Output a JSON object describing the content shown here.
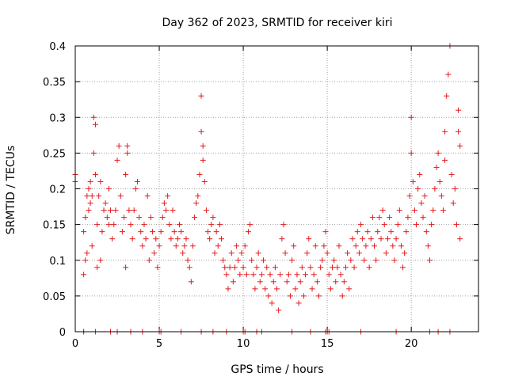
{
  "chart_data": {
    "type": "scatter",
    "title": "Day 362 of 2023, SRMTID for receiver kiri",
    "xlabel": "GPS time / hours",
    "ylabel": "SRMTID / TECUs",
    "xlim": [
      0,
      24
    ],
    "ylim": [
      0,
      0.4
    ],
    "grid": true,
    "x_ticks": [
      0,
      5,
      10,
      15,
      20
    ],
    "x_tick_labels": [
      "0",
      "5",
      "10",
      "15",
      "20"
    ],
    "y_ticks": [
      0,
      0.05,
      0.1,
      0.15,
      0.2,
      0.25,
      0.3,
      0.35,
      0.4
    ],
    "y_tick_labels": [
      "0",
      "0.05",
      "0.1",
      "0.15",
      "0.2",
      "0.25",
      "0.3",
      "0.35",
      "0.4"
    ],
    "marker": "+",
    "series": [
      {
        "name": "SRMTID",
        "color": "#e41a1c",
        "points": [
          [
            0.0,
            0.21
          ],
          [
            0.0,
            0.22
          ],
          [
            0.5,
            0.14
          ],
          [
            0.5,
            0.08
          ],
          [
            0.6,
            0.1
          ],
          [
            0.6,
            0.16
          ],
          [
            0.7,
            0.11
          ],
          [
            0.7,
            0.19
          ],
          [
            0.8,
            0.2
          ],
          [
            0.8,
            0.17
          ],
          [
            0.9,
            0.18
          ],
          [
            0.9,
            0.21
          ],
          [
            1.0,
            0.19
          ],
          [
            1.0,
            0.12
          ],
          [
            1.1,
            0.25
          ],
          [
            1.1,
            0.3
          ],
          [
            1.2,
            0.29
          ],
          [
            1.2,
            0.22
          ],
          [
            1.3,
            0.09
          ],
          [
            1.3,
            0.15
          ],
          [
            1.4,
            0.19
          ],
          [
            1.5,
            0.21
          ],
          [
            1.5,
            0.1
          ],
          [
            1.6,
            0.14
          ],
          [
            1.7,
            0.17
          ],
          [
            1.8,
            0.18
          ],
          [
            1.9,
            0.16
          ],
          [
            2.0,
            0.15
          ],
          [
            2.0,
            0.2
          ],
          [
            2.1,
            0.17
          ],
          [
            2.2,
            0.13
          ],
          [
            2.3,
            0.15
          ],
          [
            2.4,
            0.17
          ],
          [
            2.5,
            0.24
          ],
          [
            2.6,
            0.26
          ],
          [
            2.7,
            0.19
          ],
          [
            2.8,
            0.14
          ],
          [
            2.9,
            0.16
          ],
          [
            3.0,
            0.22
          ],
          [
            3.0,
            0.09
          ],
          [
            3.1,
            0.25
          ],
          [
            3.1,
            0.26
          ],
          [
            3.2,
            0.17
          ],
          [
            3.3,
            0.15
          ],
          [
            3.4,
            0.13
          ],
          [
            3.5,
            0.17
          ],
          [
            3.6,
            0.2
          ],
          [
            3.7,
            0.21
          ],
          [
            3.8,
            0.16
          ],
          [
            3.9,
            0.14
          ],
          [
            4.0,
            0.12
          ],
          [
            4.1,
            0.15
          ],
          [
            4.2,
            0.13
          ],
          [
            4.3,
            0.19
          ],
          [
            4.4,
            0.1
          ],
          [
            4.5,
            0.16
          ],
          [
            4.6,
            0.14
          ],
          [
            4.7,
            0.11
          ],
          [
            4.8,
            0.13
          ],
          [
            4.9,
            0.09
          ],
          [
            5.0,
            0.12
          ],
          [
            5.1,
            0.14
          ],
          [
            5.2,
            0.16
          ],
          [
            5.3,
            0.18
          ],
          [
            5.4,
            0.17
          ],
          [
            5.5,
            0.19
          ],
          [
            5.6,
            0.15
          ],
          [
            5.7,
            0.13
          ],
          [
            5.8,
            0.17
          ],
          [
            5.9,
            0.14
          ],
          [
            6.0,
            0.12
          ],
          [
            6.1,
            0.13
          ],
          [
            6.2,
            0.15
          ],
          [
            6.3,
            0.14
          ],
          [
            6.4,
            0.11
          ],
          [
            6.5,
            0.12
          ],
          [
            6.6,
            0.13
          ],
          [
            6.7,
            0.1
          ],
          [
            6.8,
            0.09
          ],
          [
            6.9,
            0.07
          ],
          [
            7.0,
            0.12
          ],
          [
            7.1,
            0.16
          ],
          [
            7.2,
            0.18
          ],
          [
            7.3,
            0.19
          ],
          [
            7.4,
            0.22
          ],
          [
            7.5,
            0.28
          ],
          [
            7.5,
            0.33
          ],
          [
            7.6,
            0.26
          ],
          [
            7.6,
            0.24
          ],
          [
            7.7,
            0.21
          ],
          [
            7.8,
            0.17
          ],
          [
            7.9,
            0.14
          ],
          [
            8.0,
            0.13
          ],
          [
            8.1,
            0.15
          ],
          [
            8.2,
            0.16
          ],
          [
            8.3,
            0.11
          ],
          [
            8.4,
            0.14
          ],
          [
            8.5,
            0.12
          ],
          [
            8.6,
            0.15
          ],
          [
            8.7,
            0.13
          ],
          [
            8.8,
            0.1
          ],
          [
            8.9,
            0.09
          ],
          [
            9.0,
            0.08
          ],
          [
            9.1,
            0.06
          ],
          [
            9.2,
            0.09
          ],
          [
            9.3,
            0.11
          ],
          [
            9.4,
            0.07
          ],
          [
            9.5,
            0.09
          ],
          [
            9.6,
            0.12
          ],
          [
            9.7,
            0.1
          ],
          [
            9.8,
            0.08
          ],
          [
            9.9,
            0.11
          ],
          [
            10.0,
            0.09
          ],
          [
            10.1,
            0.12
          ],
          [
            10.2,
            0.08
          ],
          [
            10.3,
            0.14
          ],
          [
            10.4,
            0.15
          ],
          [
            10.5,
            0.1
          ],
          [
            10.6,
            0.08
          ],
          [
            10.7,
            0.06
          ],
          [
            10.8,
            0.09
          ],
          [
            10.9,
            0.11
          ],
          [
            11.0,
            0.07
          ],
          [
            11.1,
            0.08
          ],
          [
            11.2,
            0.1
          ],
          [
            11.3,
            0.06
          ],
          [
            11.4,
            0.09
          ],
          [
            11.5,
            0.05
          ],
          [
            11.6,
            0.08
          ],
          [
            11.7,
            0.04
          ],
          [
            11.8,
            0.07
          ],
          [
            11.9,
            0.09
          ],
          [
            12.0,
            0.06
          ],
          [
            12.1,
            0.03
          ],
          [
            12.2,
            0.08
          ],
          [
            12.3,
            0.13
          ],
          [
            12.4,
            0.15
          ],
          [
            12.5,
            0.11
          ],
          [
            12.6,
            0.07
          ],
          [
            12.7,
            0.08
          ],
          [
            12.8,
            0.05
          ],
          [
            12.9,
            0.1
          ],
          [
            13.0,
            0.12
          ],
          [
            13.1,
            0.06
          ],
          [
            13.2,
            0.08
          ],
          [
            13.3,
            0.04
          ],
          [
            13.4,
            0.07
          ],
          [
            13.5,
            0.09
          ],
          [
            13.6,
            0.05
          ],
          [
            13.7,
            0.08
          ],
          [
            13.8,
            0.11
          ],
          [
            13.9,
            0.13
          ],
          [
            14.0,
            0.09
          ],
          [
            14.1,
            0.06
          ],
          [
            14.2,
            0.08
          ],
          [
            14.3,
            0.12
          ],
          [
            14.4,
            0.07
          ],
          [
            14.5,
            0.05
          ],
          [
            14.6,
            0.09
          ],
          [
            14.7,
            0.1
          ],
          [
            14.8,
            0.12
          ],
          [
            14.9,
            0.14
          ],
          [
            15.0,
            0.11
          ],
          [
            15.1,
            0.08
          ],
          [
            15.2,
            0.06
          ],
          [
            15.3,
            0.09
          ],
          [
            15.4,
            0.1
          ],
          [
            15.5,
            0.07
          ],
          [
            15.6,
            0.09
          ],
          [
            15.7,
            0.12
          ],
          [
            15.8,
            0.08
          ],
          [
            15.9,
            0.05
          ],
          [
            16.0,
            0.07
          ],
          [
            16.1,
            0.09
          ],
          [
            16.2,
            0.11
          ],
          [
            16.3,
            0.06
          ],
          [
            16.4,
            0.1
          ],
          [
            16.5,
            0.13
          ],
          [
            16.6,
            0.09
          ],
          [
            16.7,
            0.12
          ],
          [
            16.8,
            0.14
          ],
          [
            16.9,
            0.11
          ],
          [
            17.0,
            0.15
          ],
          [
            17.1,
            0.13
          ],
          [
            17.2,
            0.1
          ],
          [
            17.3,
            0.12
          ],
          [
            17.4,
            0.14
          ],
          [
            17.5,
            0.09
          ],
          [
            17.6,
            0.13
          ],
          [
            17.7,
            0.16
          ],
          [
            17.8,
            0.12
          ],
          [
            17.9,
            0.1
          ],
          [
            18.0,
            0.14
          ],
          [
            18.1,
            0.16
          ],
          [
            18.2,
            0.13
          ],
          [
            18.3,
            0.17
          ],
          [
            18.4,
            0.15
          ],
          [
            18.5,
            0.11
          ],
          [
            18.6,
            0.13
          ],
          [
            18.7,
            0.16
          ],
          [
            18.8,
            0.14
          ],
          [
            18.9,
            0.12
          ],
          [
            19.0,
            0.1
          ],
          [
            19.1,
            0.13
          ],
          [
            19.2,
            0.15
          ],
          [
            19.3,
            0.17
          ],
          [
            19.4,
            0.12
          ],
          [
            19.5,
            0.09
          ],
          [
            19.6,
            0.11
          ],
          [
            19.7,
            0.14
          ],
          [
            19.8,
            0.16
          ],
          [
            19.9,
            0.19
          ],
          [
            20.0,
            0.3
          ],
          [
            20.0,
            0.25
          ],
          [
            20.1,
            0.21
          ],
          [
            20.2,
            0.17
          ],
          [
            20.3,
            0.15
          ],
          [
            20.4,
            0.2
          ],
          [
            20.5,
            0.22
          ],
          [
            20.6,
            0.18
          ],
          [
            20.7,
            0.16
          ],
          [
            20.8,
            0.19
          ],
          [
            20.9,
            0.14
          ],
          [
            21.0,
            0.12
          ],
          [
            21.1,
            0.1
          ],
          [
            21.2,
            0.15
          ],
          [
            21.3,
            0.17
          ],
          [
            21.4,
            0.2
          ],
          [
            21.5,
            0.23
          ],
          [
            21.6,
            0.25
          ],
          [
            21.7,
            0.21
          ],
          [
            21.8,
            0.19
          ],
          [
            21.9,
            0.17
          ],
          [
            22.0,
            0.24
          ],
          [
            22.0,
            0.28
          ],
          [
            22.1,
            0.33
          ],
          [
            22.2,
            0.36
          ],
          [
            22.3,
            0.4
          ],
          [
            22.4,
            0.22
          ],
          [
            22.5,
            0.18
          ],
          [
            22.6,
            0.2
          ],
          [
            22.7,
            0.15
          ],
          [
            22.8,
            0.28
          ],
          [
            22.8,
            0.31
          ],
          [
            22.9,
            0.26
          ],
          [
            22.9,
            0.13
          ]
        ],
        "zero_points_x": [
          0.5,
          0.5,
          1.2,
          2.1,
          2.5,
          3.3,
          4.0,
          5.0,
          5.1,
          6.3,
          7.5,
          8.2,
          9.0,
          10.0,
          10.1,
          10.8,
          11.1,
          12.9,
          14.0,
          14.9,
          15.0,
          15.1,
          17.0,
          19.1,
          21.1,
          21.6,
          22.3
        ]
      }
    ]
  }
}
